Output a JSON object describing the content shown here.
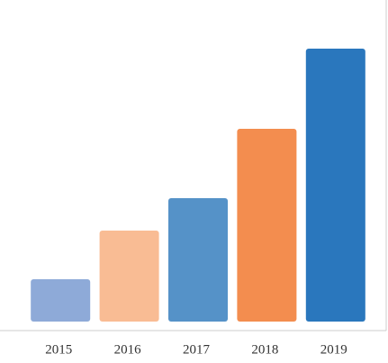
{
  "chart_data": {
    "type": "bar",
    "categories": [
      "2015",
      "2016",
      "2017",
      "2018",
      "2019"
    ],
    "values": [
      47,
      101,
      137,
      214,
      303
    ],
    "colors": [
      "#8eaad8",
      "#f9bc94",
      "#5592c8",
      "#f38d4f",
      "#2a77bd"
    ],
    "ylim": [
      0,
      357
    ]
  }
}
